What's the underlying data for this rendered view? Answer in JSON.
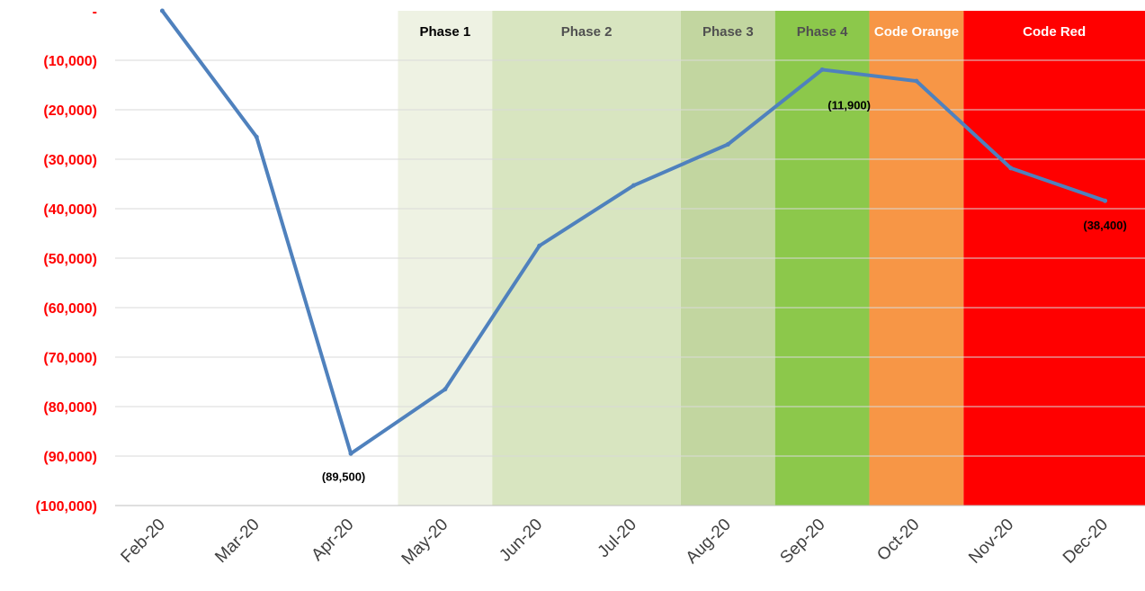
{
  "chart_data": {
    "type": "line",
    "categories": [
      "Feb-20",
      "Mar-20",
      "Apr-20",
      "May-20",
      "Jun-20",
      "Jul-20",
      "Aug-20",
      "Sep-20",
      "Oct-20",
      "Nov-20",
      "Dec-20"
    ],
    "series": [
      {
        "values": [
          0,
          -25500,
          -89500,
          -76500,
          -47500,
          -35300,
          -27000,
          -11900,
          -14200,
          -31800,
          -38400
        ]
      }
    ],
    "ylim": [
      -100000,
      0
    ],
    "yticks": [
      0,
      -10000,
      -20000,
      -30000,
      -40000,
      -50000,
      -60000,
      -70000,
      -80000,
      -90000,
      -100000
    ],
    "ytick_labels": [
      "-",
      "(10,000)",
      "(20,000)",
      "(30,000)",
      "(40,000)",
      "(50,000)",
      "(60,000)",
      "(70,000)",
      "(80,000)",
      "(90,000)",
      "(100,000)"
    ],
    "grid": true,
    "phases": [
      {
        "label": "Phase 1",
        "start": 3,
        "end": 4,
        "color": "#eef2e3",
        "label_color": "#000000"
      },
      {
        "label": "Phase 2",
        "start": 4,
        "end": 6,
        "color": "#d8e5c0",
        "label_color": "#505050"
      },
      {
        "label": "Phase 3",
        "start": 6,
        "end": 7,
        "color": "#c2d6a0",
        "label_color": "#505050"
      },
      {
        "label": "Phase 4",
        "start": 7,
        "end": 8,
        "color": "#8cc84b",
        "label_color": "#505050"
      },
      {
        "label": "Code Orange",
        "start": 8,
        "end": 9,
        "color": "#f79646",
        "label_color": "#ffffff"
      },
      {
        "label": "Code Red",
        "start": 9,
        "end": 11,
        "color": "#ff0000",
        "label_color": "#ffffff"
      }
    ],
    "annotations": [
      {
        "index": 2,
        "text": "(89,500)"
      },
      {
        "index": 7,
        "text": "(11,900)"
      },
      {
        "index": 10,
        "text": "(38,400)"
      }
    ],
    "colors": {
      "line": "#4f81bd",
      "ytick": "#ff0000",
      "grid": "#d9d9d9",
      "axis": "#bfbfbf"
    }
  }
}
